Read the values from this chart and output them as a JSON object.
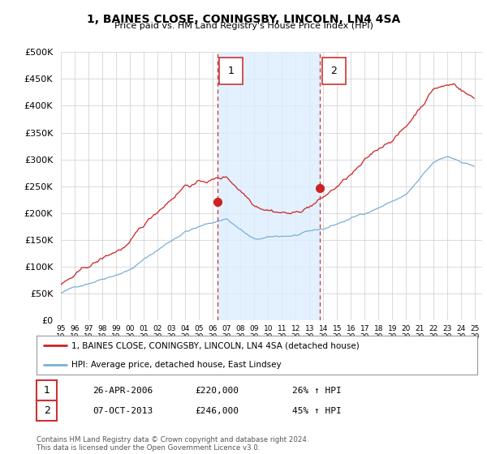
{
  "title": "1, BAINES CLOSE, CONINGSBY, LINCOLN, LN4 4SA",
  "subtitle": "Price paid vs. HM Land Registry's House Price Index (HPI)",
  "ylim": [
    0,
    500000
  ],
  "yticks": [
    0,
    50000,
    100000,
    150000,
    200000,
    250000,
    300000,
    350000,
    400000,
    450000,
    500000
  ],
  "xlim_start": 1995.0,
  "xlim_end": 2025.5,
  "legend_line1": "1, BAINES CLOSE, CONINGSBY, LINCOLN, LN4 4SA (detached house)",
  "legend_line2": "HPI: Average price, detached house, East Lindsey",
  "transaction1_label": "1",
  "transaction1_date": "26-APR-2006",
  "transaction1_price": "£220,000",
  "transaction1_hpi": "26% ↑ HPI",
  "transaction2_label": "2",
  "transaction2_date": "07-OCT-2013",
  "transaction2_price": "£246,000",
  "transaction2_hpi": "45% ↑ HPI",
  "footnote": "Contains HM Land Registry data © Crown copyright and database right 2024.\nThis data is licensed under the Open Government Licence v3.0.",
  "hpi_color": "#7bafd4",
  "price_color": "#cc2222",
  "vline_color": "#cc3333",
  "shade_color": "#ddeeff",
  "grid_color": "#cccccc",
  "background_color": "#ffffff",
  "plot_bg_color": "#ffffff",
  "marker1_x": 2006.32,
  "marker1_y": 220000,
  "marker2_x": 2013.77,
  "marker2_y": 246000
}
